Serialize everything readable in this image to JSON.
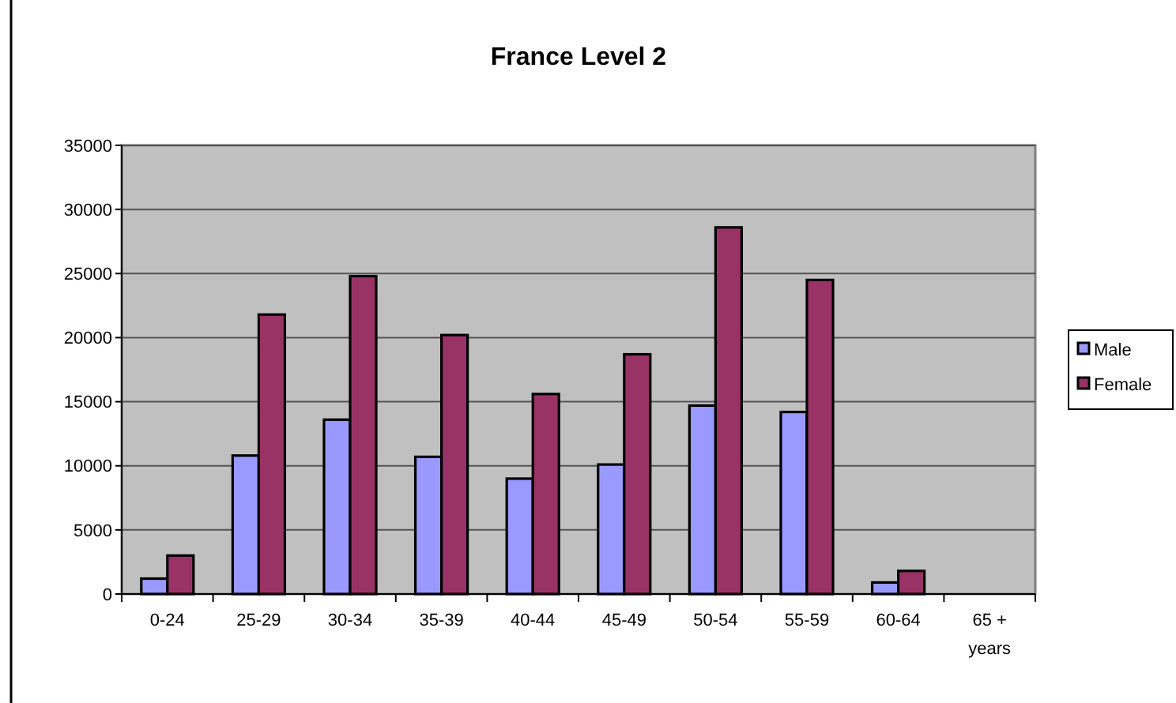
{
  "chart_data": {
    "type": "bar",
    "title": "France Level 2",
    "categories": [
      "0-24",
      "25-29",
      "30-34",
      "35-39",
      "40-44",
      "45-49",
      "50-54",
      "55-59",
      "60-64",
      "65 + years"
    ],
    "series": [
      {
        "name": "Male",
        "color": "#9999ff",
        "values": [
          1200,
          10800,
          13600,
          10700,
          9000,
          10100,
          14700,
          14200,
          900,
          null
        ]
      },
      {
        "name": "Female",
        "color": "#993366",
        "values": [
          3000,
          21800,
          24800,
          20200,
          15600,
          18700,
          28600,
          24500,
          1800,
          null
        ]
      }
    ],
    "ylim": [
      0,
      35000
    ],
    "yticks": [
      0,
      5000,
      10000,
      15000,
      20000,
      25000,
      30000,
      35000
    ],
    "grid": "y",
    "legend": "right"
  }
}
